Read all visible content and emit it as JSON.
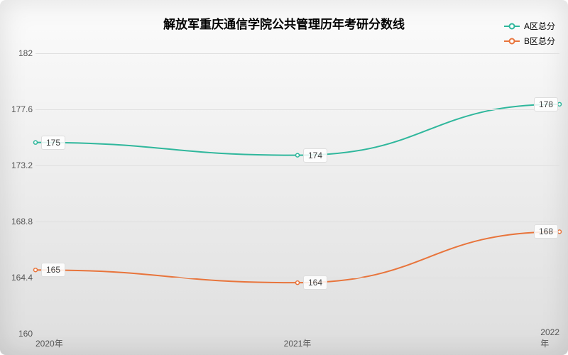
{
  "chart": {
    "type": "line",
    "title": "解放军重庆通信学院公共管理历年考研分数线",
    "title_fontsize": 17,
    "title_fontweight": "bold",
    "title_color": "#000000",
    "background_gradient": {
      "top": "#fcfcfc",
      "bottom": "#dedede"
    },
    "plot_background": "transparent",
    "shadow_color": "rgba(0,0,0,0.12)",
    "border_radius": 8,
    "categories": [
      "2020年",
      "2021年",
      "2022年"
    ],
    "series": [
      {
        "name": "A区总分",
        "color": "#2fb79c",
        "values": [
          175,
          174,
          178
        ],
        "line_width": 2,
        "marker": "circle",
        "marker_size": 5
      },
      {
        "name": "B区总分",
        "color": "#e8743b",
        "values": [
          165,
          164,
          168
        ],
        "line_width": 2,
        "marker": "circle",
        "marker_size": 5
      }
    ],
    "ylim": [
      160,
      182
    ],
    "yticks": [
      160,
      164.4,
      168.8,
      173.2,
      177.6,
      182
    ],
    "grid_color": "#e0e0e0",
    "axis_font_size": 12,
    "axis_color": "#555555",
    "legend": {
      "position": "top-right",
      "font_size": 12
    },
    "label_box": {
      "background": "rgba(255,255,255,0.85)",
      "border": "#dddddd",
      "font_size": 12,
      "color": "#444444"
    },
    "curve_smoothing": true
  }
}
